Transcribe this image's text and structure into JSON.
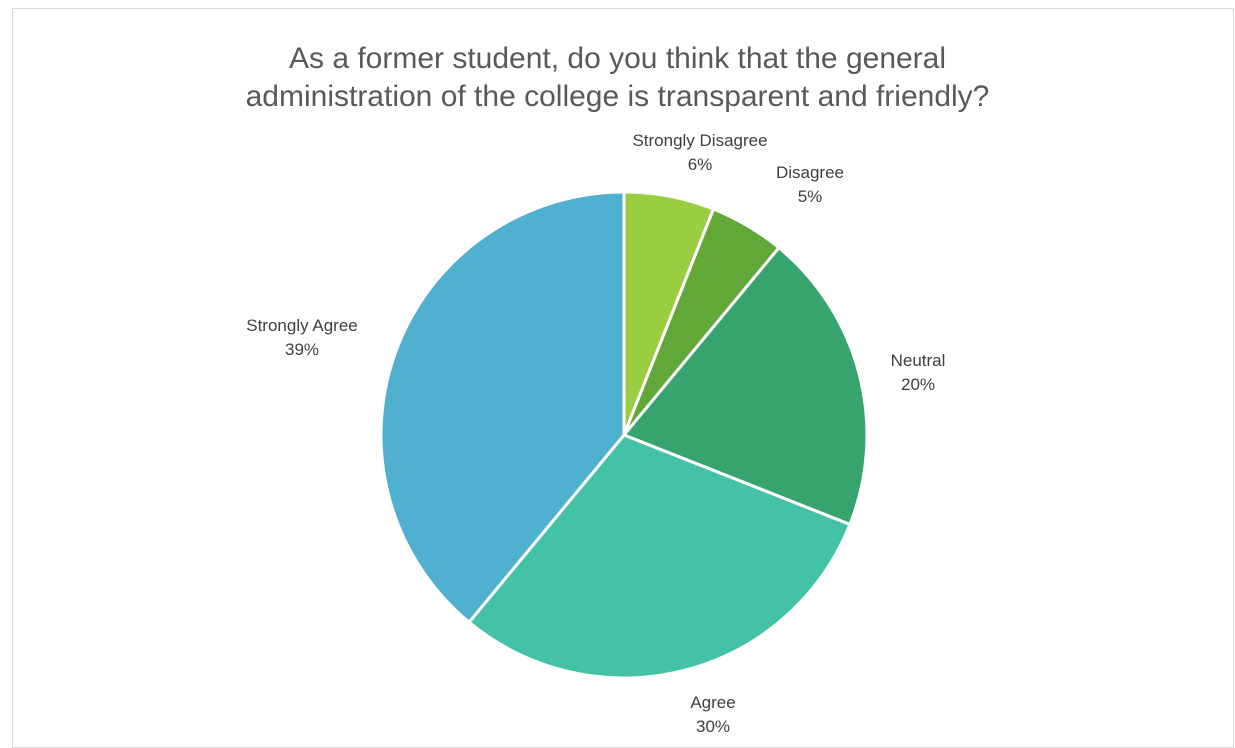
{
  "chart_data": {
    "type": "pie",
    "title_lines": [
      "As a former student, do you think that the general",
      "administration of the college is transparent and  friendly?"
    ],
    "slices": [
      {
        "label": "Strongly Disagree",
        "value": 6,
        "display": "6%",
        "color": "#9acd3f"
      },
      {
        "label": "Disagree",
        "value": 5,
        "display": "5%",
        "color": "#62a839"
      },
      {
        "label": "Neutral",
        "value": 20,
        "display": "20%",
        "color": "#37a46e"
      },
      {
        "label": "Agree",
        "value": 30,
        "display": "30%",
        "color": "#44c2a5"
      },
      {
        "label": "Strongly Agree",
        "value": 39,
        "display": "39%",
        "color": "#4fb1cf"
      }
    ],
    "start": "12 o'clock",
    "direction": "clockwise",
    "legend": "none",
    "data_labels": "category name and percentage, outside slices"
  }
}
